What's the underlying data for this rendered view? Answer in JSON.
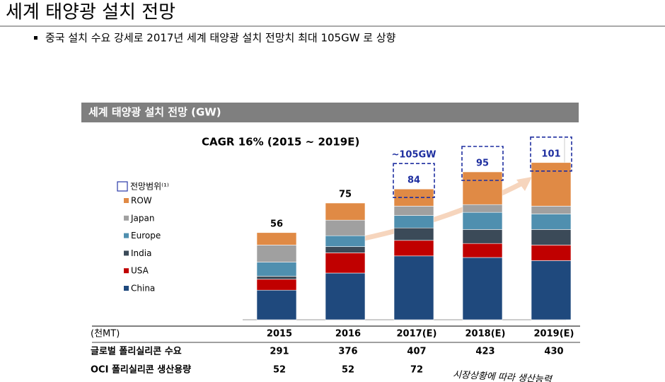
{
  "header": {
    "title": "세계 태양광 설치 전망",
    "bullet": "중국 설치 수요 강세로 2017년 세계 태양광 설치 전망치 최대 105GW 로 상향"
  },
  "chart_data": {
    "type": "stacked_bar",
    "title": "세계 태양광 설치 전망 (GW)",
    "subtitle": "CAGR 16% (2015 ~ 2019E)",
    "annotation": "~105GW",
    "range_legend": "전망범위⁽¹⁾",
    "categories": [
      "2015",
      "2016",
      "2017(E)",
      "2018(E)",
      "2019(E)"
    ],
    "series": [
      {
        "name": "China",
        "color": "#1f497d",
        "values": [
          19,
          30,
          41,
          40,
          38
        ]
      },
      {
        "name": "USA",
        "color": "#c00000",
        "values": [
          7,
          13,
          10,
          9,
          10
        ]
      },
      {
        "name": "India",
        "color": "#3b4a58",
        "values": [
          2,
          4,
          8,
          9,
          10
        ]
      },
      {
        "name": "Europe",
        "color": "#4f8faf",
        "values": [
          9,
          7,
          8,
          11,
          10
        ]
      },
      {
        "name": "Japan",
        "color": "#a0a0a0",
        "values": [
          11,
          10,
          6,
          5,
          5
        ]
      },
      {
        "name": "ROW",
        "color": "#e08a45",
        "values": [
          8,
          11,
          11,
          21,
          28
        ]
      }
    ],
    "totals": [
      56,
      75,
      84,
      95,
      101
    ],
    "ylim": [
      0,
      110
    ]
  },
  "table": {
    "unit": "(천MT)",
    "rows": [
      [
        "글로벌 폴리실리콘 수요",
        "291",
        "376",
        "407",
        "423",
        "430"
      ],
      [
        "OCI 폴리실리콘 생산용량",
        "52",
        "52",
        "72"
      ]
    ],
    "note": "시장상황에 따라 생산능력"
  }
}
